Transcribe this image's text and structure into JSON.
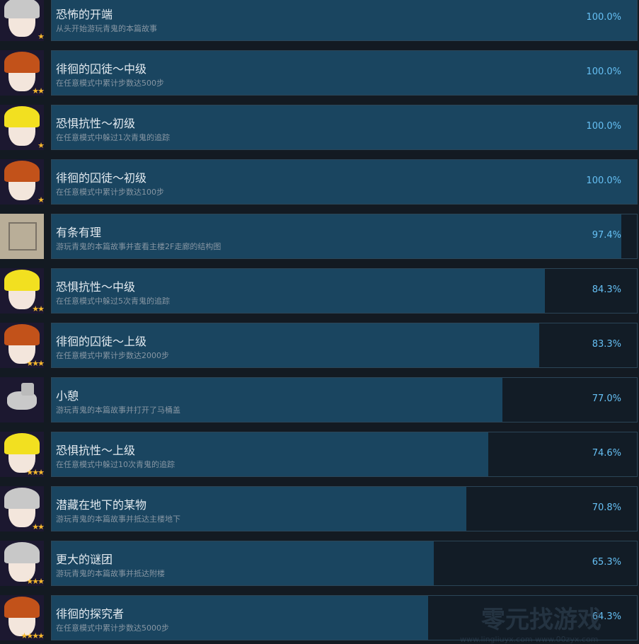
{
  "achievements": [
    {
      "title": "恐怖的开端",
      "desc": "从头开始游玩青鬼的本篇故事",
      "percent": "100.0%",
      "progress": 100,
      "stars": 1,
      "icon": "takuro-portrait-icon"
    },
    {
      "title": "徘徊的囚徒～中级",
      "desc": "在任意模式中累计步数达500步",
      "percent": "100.0%",
      "progress": 100,
      "stars": 2,
      "icon": "mika-portrait-icon"
    },
    {
      "title": "恐惧抗性～初级",
      "desc": "在任意模式中躲过1次青鬼的追踪",
      "percent": "100.0%",
      "progress": 100,
      "stars": 1,
      "icon": "takeshi-portrait-icon"
    },
    {
      "title": "徘徊的囚徒～初级",
      "desc": "在任意模式中累计步数达100步",
      "percent": "100.0%",
      "progress": 100,
      "stars": 1,
      "icon": "mika-portrait-icon"
    },
    {
      "title": "有条有理",
      "desc": "游玩青鬼的本篇故事并查看主楼2F走廊的结构图",
      "percent": "97.4%",
      "progress": 97.4,
      "stars": 0,
      "icon": "floor-map-icon"
    },
    {
      "title": "恐惧抗性～中级",
      "desc": "在任意模式中躲过5次青鬼的追踪",
      "percent": "84.3%",
      "progress": 84.3,
      "stars": 2,
      "icon": "takeshi-portrait-icon"
    },
    {
      "title": "徘徊的囚徒～上级",
      "desc": "在任意模式中累计步数达2000步",
      "percent": "83.3%",
      "progress": 83.3,
      "stars": 3,
      "icon": "mika-portrait-icon"
    },
    {
      "title": "小憩",
      "desc": "游玩青鬼的本篇故事并打开了马桶盖",
      "percent": "77.0%",
      "progress": 77.0,
      "stars": 0,
      "icon": "toilet-icon"
    },
    {
      "title": "恐惧抗性～上级",
      "desc": "在任意模式中躲过10次青鬼的追踪",
      "percent": "74.6%",
      "progress": 74.6,
      "stars": 3,
      "icon": "takeshi-portrait-icon"
    },
    {
      "title": "潜藏在地下的某物",
      "desc": "游玩青鬼的本篇故事并抵达主楼地下",
      "percent": "70.8%",
      "progress": 70.8,
      "stars": 2,
      "icon": "takuro-portrait-icon"
    },
    {
      "title": "更大的谜团",
      "desc": "游玩青鬼的本篇故事并抵达附楼",
      "percent": "65.3%",
      "progress": 65.3,
      "stars": 3,
      "icon": "takuro-portrait-icon"
    },
    {
      "title": "徘徊的探究者",
      "desc": "在任意模式中累计步数达5000步",
      "percent": "64.3%",
      "progress": 64.3,
      "stars": 4,
      "icon": "mika-portrait-icon"
    }
  ],
  "watermark": {
    "name": "零元找游戏",
    "urls": "www.lingliuyx.com  www.00zyx.com"
  }
}
